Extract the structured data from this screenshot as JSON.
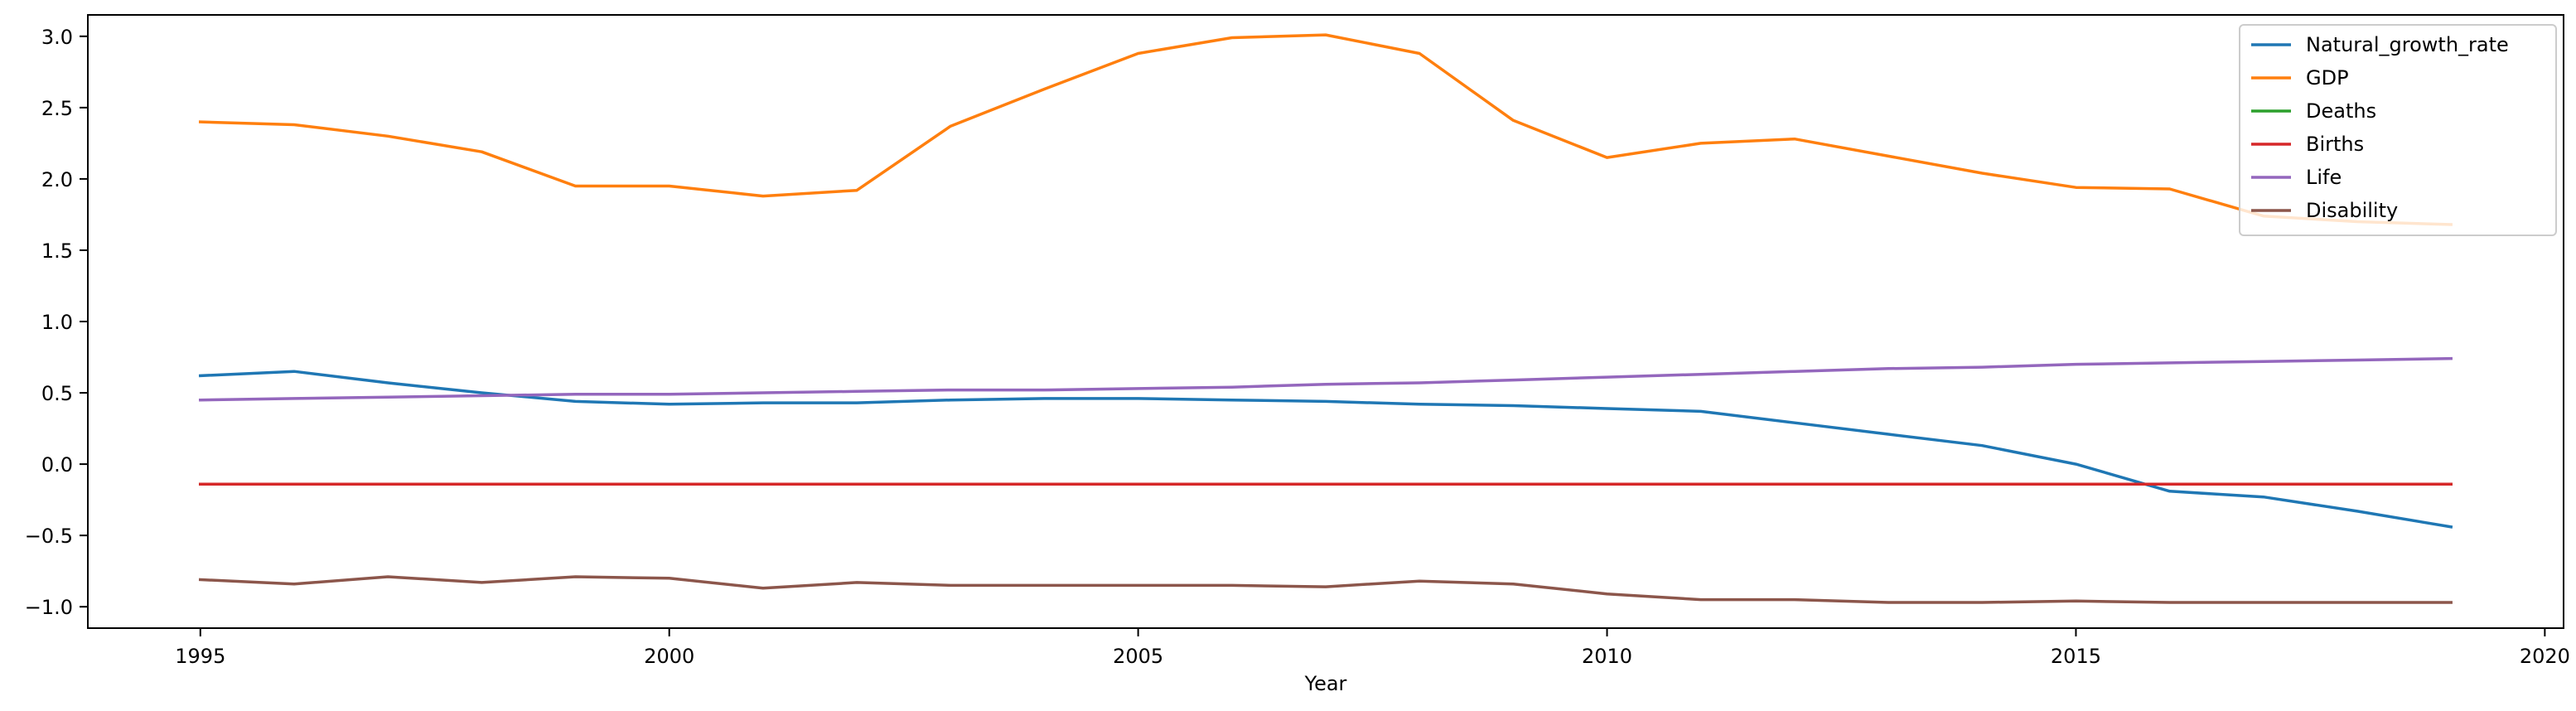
{
  "chart_data": {
    "type": "line",
    "title": "",
    "xlabel": "Year",
    "ylabel": "",
    "xlim": [
      1993.8,
      2020.2
    ],
    "ylim": [
      -1.15,
      3.15
    ],
    "xticks": [
      1995,
      2000,
      2005,
      2010,
      2015,
      2020
    ],
    "yticks": [
      -1.0,
      -0.5,
      0.0,
      0.5,
      1.0,
      1.5,
      2.0,
      2.5,
      3.0
    ],
    "ytick_labels": [
      "−1.0",
      "−0.5",
      "0.0",
      "0.5",
      "1.0",
      "1.5",
      "2.0",
      "2.5",
      "3.0"
    ],
    "grid": false,
    "legend_position": "top-right",
    "x": [
      1995,
      1996,
      1997,
      1998,
      1999,
      2000,
      2001,
      2002,
      2003,
      2004,
      2005,
      2006,
      2007,
      2008,
      2009,
      2010,
      2011,
      2012,
      2013,
      2014,
      2015,
      2016,
      2017,
      2018,
      2019
    ],
    "series": [
      {
        "name": "Natural_growth_rate",
        "color": "#1f77b4",
        "values": [
          0.62,
          0.65,
          0.57,
          0.5,
          0.44,
          0.42,
          0.43,
          0.43,
          0.45,
          0.46,
          0.46,
          0.45,
          0.44,
          0.42,
          0.41,
          0.39,
          0.37,
          0.29,
          0.21,
          0.13,
          0.0,
          -0.19,
          -0.23,
          -0.33,
          -0.44
        ]
      },
      {
        "name": "GDP",
        "color": "#ff7f0e",
        "values": [
          2.4,
          2.38,
          2.3,
          2.19,
          1.95,
          1.95,
          1.88,
          1.92,
          2.37,
          2.63,
          2.88,
          2.99,
          3.01,
          2.88,
          2.41,
          2.15,
          2.25,
          2.28,
          2.16,
          2.04,
          1.94,
          1.93,
          1.74,
          1.7,
          1.68
        ]
      },
      {
        "name": "Deaths",
        "color": "#2ca02c",
        "values": [
          -0.14,
          -0.14,
          -0.14,
          -0.14,
          -0.14,
          -0.14,
          -0.14,
          -0.14,
          -0.14,
          -0.14,
          -0.14,
          -0.14,
          -0.14,
          -0.14,
          -0.14,
          -0.14,
          -0.14,
          -0.14,
          -0.14,
          -0.14,
          -0.14,
          -0.14,
          -0.14,
          -0.14,
          -0.14
        ]
      },
      {
        "name": "Births",
        "color": "#d62728",
        "values": [
          -0.14,
          -0.14,
          -0.14,
          -0.14,
          -0.14,
          -0.14,
          -0.14,
          -0.14,
          -0.14,
          -0.14,
          -0.14,
          -0.14,
          -0.14,
          -0.14,
          -0.14,
          -0.14,
          -0.14,
          -0.14,
          -0.14,
          -0.14,
          -0.14,
          -0.14,
          -0.14,
          -0.14,
          -0.14
        ]
      },
      {
        "name": "Life",
        "color": "#9467bd",
        "values": [
          0.45,
          0.46,
          0.47,
          0.48,
          0.49,
          0.49,
          0.5,
          0.51,
          0.52,
          0.52,
          0.53,
          0.54,
          0.56,
          0.57,
          0.59,
          0.61,
          0.63,
          0.65,
          0.67,
          0.68,
          0.7,
          0.71,
          0.72,
          0.73,
          0.74
        ]
      },
      {
        "name": "Disability",
        "color": "#8c564b",
        "values": [
          -0.81,
          -0.84,
          -0.79,
          -0.83,
          -0.79,
          -0.8,
          -0.87,
          -0.83,
          -0.85,
          -0.85,
          -0.85,
          -0.85,
          -0.86,
          -0.82,
          -0.84,
          -0.91,
          -0.95,
          -0.95,
          -0.97,
          -0.97,
          -0.96,
          -0.97,
          -0.97,
          -0.97,
          -0.97
        ]
      }
    ]
  }
}
